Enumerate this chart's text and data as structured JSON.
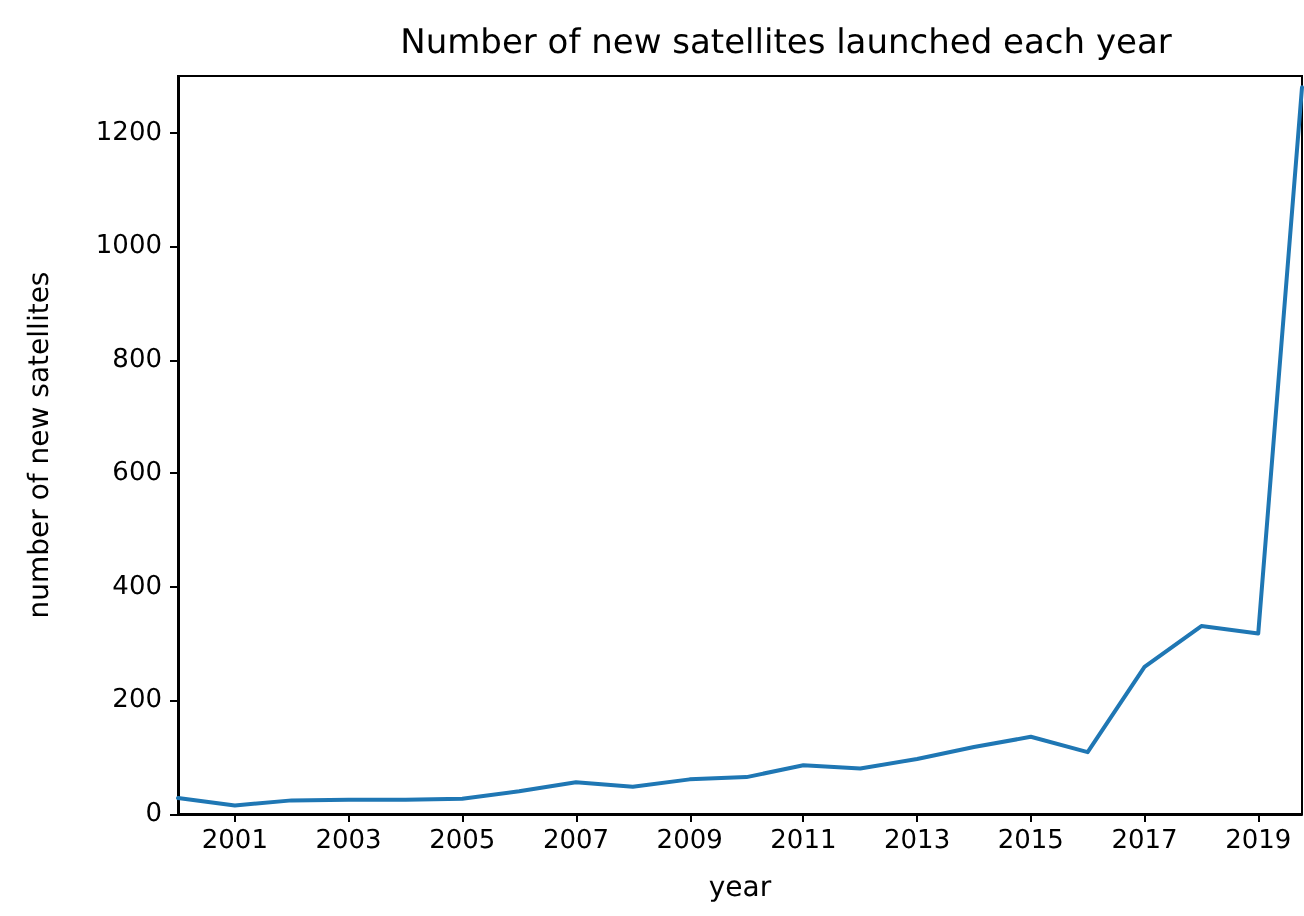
{
  "chart_data": {
    "type": "line",
    "title": "Number of new satellites launched each year",
    "xlabel": "year",
    "ylabel": "number of new satellites",
    "x": [
      2000,
      2001,
      2002,
      2003,
      2004,
      2005,
      2006,
      2007,
      2008,
      2009,
      2010,
      2011,
      2012,
      2013,
      2014,
      2015,
      2016,
      2017,
      2018,
      2019,
      2019.77
    ],
    "series": [
      {
        "color": "#1f77b4",
        "values": [
          28,
          15,
          24,
          25,
          25,
          27,
          40,
          56,
          48,
          61,
          65,
          86,
          80,
          97,
          118,
          136,
          109,
          259,
          331,
          318,
          1280
        ]
      }
    ],
    "xlim": [
      2000,
      2019.77
    ],
    "xticks": [
      2001,
      2003,
      2005,
      2007,
      2009,
      2011,
      2013,
      2015,
      2017,
      2019
    ],
    "ylim": [
      0,
      1300
    ],
    "yticks": [
      0,
      200,
      400,
      600,
      800,
      1000,
      1200
    ],
    "grid": false,
    "marker": "none",
    "line_style": "solid"
  }
}
